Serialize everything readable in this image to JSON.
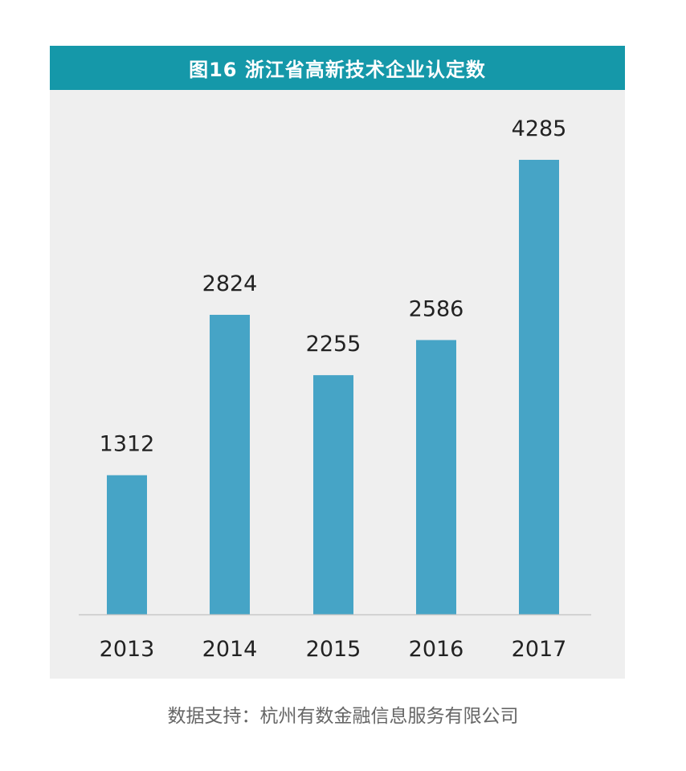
{
  "chart_data": {
    "type": "bar",
    "title": "图16 浙江省高新技术企业认定数",
    "categories": [
      "2013",
      "2014",
      "2015",
      "2016",
      "2017"
    ],
    "values": [
      1312,
      2824,
      2255,
      2586,
      4285
    ],
    "ylim": [
      0,
      4285
    ],
    "grid": false,
    "legend": "none",
    "colors": {
      "bar": "#46a4c6",
      "title_bg": "#1598a9",
      "plot_bg": "#efefef",
      "axis": "#c8c8c8",
      "label": "#222222"
    }
  },
  "source": "数据支持：杭州有数金融信息服务有限公司"
}
